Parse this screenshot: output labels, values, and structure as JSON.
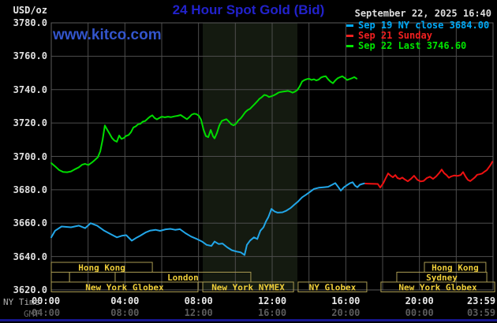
{
  "header": {
    "title": "24 Hour Spot Gold (Bid)",
    "unit_label": "USD/oz",
    "datetime": "September 22, 2025 16:40",
    "watermark": "www.kitco.com"
  },
  "legend": {
    "items": [
      {
        "label": "Sep 19 NY close 3684.00",
        "color": "#00aaf8"
      },
      {
        "label": "Sep 21 Sunday",
        "color": "#f02020"
      },
      {
        "label": "Sep 22 Last 3746.60",
        "color": "#00e400"
      }
    ]
  },
  "axes": {
    "x_ny_label": "NY Time",
    "x_gmt_label": "GMT",
    "x_ticks": [
      {
        "h": 0,
        "ny": "00:00",
        "gmt": "04:00"
      },
      {
        "h": 4,
        "ny": "04:00",
        "gmt": "08:00"
      },
      {
        "h": 8,
        "ny": "08:00",
        "gmt": "12:00"
      },
      {
        "h": 12,
        "ny": "12:00",
        "gmt": "16:00"
      },
      {
        "h": 16,
        "ny": "16:00",
        "gmt": "20:00"
      },
      {
        "h": 20,
        "ny": "20:00",
        "gmt": "00:00"
      },
      {
        "h": 23.983,
        "ny": "23:59",
        "gmt": "03:59"
      }
    ],
    "y_ticks": [
      {
        "v": 3780,
        "label": "3780.0"
      },
      {
        "v": 3760,
        "label": "3760.0"
      },
      {
        "v": 3740,
        "label": "3740.0"
      },
      {
        "v": 3720,
        "label": "3720.0"
      },
      {
        "v": 3700,
        "label": "3700.0"
      },
      {
        "v": 3680,
        "label": "3680.0"
      },
      {
        "v": 3660,
        "label": "3660.0"
      },
      {
        "v": 3640,
        "label": "3640.0"
      },
      {
        "v": 3620,
        "label": "3620.0"
      }
    ]
  },
  "sessions": [
    {
      "row": 1,
      "start_h": 0,
      "end_h": 5.49,
      "label": "Hong Kong"
    },
    {
      "row": 1,
      "start_h": 20.27,
      "end_h": 23.61,
      "label": "Hong Kong"
    },
    {
      "row": 2,
      "start_h": 0,
      "end_h": 0.99,
      "label": ""
    },
    {
      "row": 2,
      "start_h": 0.99,
      "end_h": 3.47,
      "label": ""
    },
    {
      "row": 2,
      "start_h": 3.47,
      "end_h": 10.84,
      "label": "London"
    },
    {
      "row": 2,
      "start_h": 18.77,
      "end_h": 23.66,
      "label": "Sydney"
    },
    {
      "row": 3,
      "start_h": 0,
      "end_h": 7.97,
      "label": "New York Globex"
    },
    {
      "row": 3,
      "start_h": 8.23,
      "end_h": 13.16,
      "label": "New York NYMEX"
    },
    {
      "row": 3,
      "start_h": 13.41,
      "end_h": 17.14,
      "label": "NY Globex"
    },
    {
      "row": 3,
      "start_h": 17.91,
      "end_h": 24.09,
      "label": "New York Globex"
    }
  ],
  "chart_data": {
    "type": "line",
    "title": "24 Hour Spot Gold (Bid)",
    "xlabel": "NY Time (hours)",
    "ylabel": "USD/oz",
    "ylim": [
      3620,
      3780
    ],
    "xlim_hours": [
      0,
      24
    ],
    "grid": true,
    "nymex_band_h": [
      8.23,
      13.37
    ],
    "band_color": "#141a10",
    "grid_color": "#4d4d4d",
    "series": [
      {
        "name": "Sep 22 Last 3746.60",
        "color": "#00dc00",
        "points": [
          [
            0,
            3696
          ],
          [
            0.21,
            3694
          ],
          [
            0.43,
            3691.8
          ],
          [
            0.64,
            3690.7
          ],
          [
            0.86,
            3690.5
          ],
          [
            1.07,
            3691
          ],
          [
            1.29,
            3692.3
          ],
          [
            1.5,
            3693.5
          ],
          [
            1.67,
            3695
          ],
          [
            1.84,
            3695.5
          ],
          [
            2.01,
            3694.8
          ],
          [
            2.19,
            3696.2
          ],
          [
            2.36,
            3697.8
          ],
          [
            2.53,
            3699.5
          ],
          [
            2.66,
            3703
          ],
          [
            2.79,
            3710
          ],
          [
            2.91,
            3718.5
          ],
          [
            3.04,
            3716
          ],
          [
            3.17,
            3713.5
          ],
          [
            3.3,
            3711
          ],
          [
            3.43,
            3709.5
          ],
          [
            3.56,
            3708.8
          ],
          [
            3.69,
            3712.5
          ],
          [
            3.81,
            3710.5
          ],
          [
            3.94,
            3711
          ],
          [
            4.07,
            3712.3
          ],
          [
            4.2,
            3712.8
          ],
          [
            4.33,
            3714.5
          ],
          [
            4.46,
            3717.3
          ],
          [
            4.59,
            3718
          ],
          [
            4.71,
            3719.2
          ],
          [
            4.84,
            3719.5
          ],
          [
            4.97,
            3720.8
          ],
          [
            5.1,
            3721.2
          ],
          [
            5.23,
            3722.5
          ],
          [
            5.36,
            3723.8
          ],
          [
            5.49,
            3724.6
          ],
          [
            5.61,
            3723
          ],
          [
            5.74,
            3722.2
          ],
          [
            5.87,
            3723
          ],
          [
            6,
            3723.8
          ],
          [
            6.17,
            3723.4
          ],
          [
            6.34,
            3723.8
          ],
          [
            6.51,
            3723.5
          ],
          [
            6.69,
            3724
          ],
          [
            6.86,
            3724.3
          ],
          [
            7.03,
            3724.8
          ],
          [
            7.2,
            3723.5
          ],
          [
            7.37,
            3722.3
          ],
          [
            7.5,
            3723.5
          ],
          [
            7.63,
            3725
          ],
          [
            7.76,
            3725.6
          ],
          [
            7.89,
            3725.3
          ],
          [
            8.01,
            3724.4
          ],
          [
            8.14,
            3722
          ],
          [
            8.27,
            3716
          ],
          [
            8.4,
            3712.2
          ],
          [
            8.53,
            3711.5
          ],
          [
            8.66,
            3715.8
          ],
          [
            8.79,
            3712
          ],
          [
            8.87,
            3710.8
          ],
          [
            9,
            3714
          ],
          [
            9.13,
            3718.5
          ],
          [
            9.26,
            3721.2
          ],
          [
            9.39,
            3721.8
          ],
          [
            9.51,
            3722.3
          ],
          [
            9.64,
            3721
          ],
          [
            9.77,
            3719.3
          ],
          [
            9.9,
            3718.6
          ],
          [
            10.03,
            3719.5
          ],
          [
            10.16,
            3721.5
          ],
          [
            10.29,
            3722.8
          ],
          [
            10.41,
            3724.5
          ],
          [
            10.54,
            3726.5
          ],
          [
            10.67,
            3727.8
          ],
          [
            10.8,
            3728.5
          ],
          [
            10.93,
            3730
          ],
          [
            11.06,
            3731.5
          ],
          [
            11.19,
            3733
          ],
          [
            11.31,
            3734.5
          ],
          [
            11.44,
            3735.5
          ],
          [
            11.57,
            3736.8
          ],
          [
            11.7,
            3736.5
          ],
          [
            11.83,
            3735.6
          ],
          [
            11.96,
            3736
          ],
          [
            12.09,
            3736.6
          ],
          [
            12.21,
            3737.3
          ],
          [
            12.34,
            3738.2
          ],
          [
            12.47,
            3738.6
          ],
          [
            12.6,
            3738.8
          ],
          [
            12.73,
            3739
          ],
          [
            12.86,
            3739.2
          ],
          [
            12.99,
            3738.8
          ],
          [
            13.11,
            3738.2
          ],
          [
            13.24,
            3738.8
          ],
          [
            13.37,
            3739.8
          ],
          [
            13.5,
            3742
          ],
          [
            13.63,
            3744.9
          ],
          [
            13.76,
            3745.8
          ],
          [
            13.89,
            3746.3
          ],
          [
            14.01,
            3746.5
          ],
          [
            14.14,
            3745.8
          ],
          [
            14.27,
            3746.2
          ],
          [
            14.4,
            3745.5
          ],
          [
            14.53,
            3746
          ],
          [
            14.66,
            3747.3
          ],
          [
            14.79,
            3747.8
          ],
          [
            14.91,
            3748
          ],
          [
            15.04,
            3746.2
          ],
          [
            15.17,
            3744.8
          ],
          [
            15.3,
            3743.8
          ],
          [
            15.43,
            3745.5
          ],
          [
            15.56,
            3746.8
          ],
          [
            15.69,
            3747.5
          ],
          [
            15.81,
            3748
          ],
          [
            15.94,
            3747
          ],
          [
            16.07,
            3745.8
          ],
          [
            16.2,
            3746.3
          ],
          [
            16.33,
            3746.8
          ],
          [
            16.46,
            3747.5
          ],
          [
            16.59,
            3746.6
          ]
        ]
      },
      {
        "name": "Sep 19 NY close 3684.00",
        "color": "#22a6e8",
        "points": [
          [
            0,
            3651.5
          ],
          [
            0.21,
            3655.5
          ],
          [
            0.56,
            3658
          ],
          [
            1.07,
            3657.5
          ],
          [
            1.5,
            3658.5
          ],
          [
            1.84,
            3657
          ],
          [
            2.14,
            3660
          ],
          [
            2.49,
            3658.5
          ],
          [
            2.87,
            3655.5
          ],
          [
            3.21,
            3653.5
          ],
          [
            3.56,
            3651.5
          ],
          [
            3.86,
            3652.5
          ],
          [
            4.07,
            3652.8
          ],
          [
            4.37,
            3649.5
          ],
          [
            4.59,
            3651
          ],
          [
            4.84,
            3652.5
          ],
          [
            5.14,
            3654.5
          ],
          [
            5.36,
            3655.5
          ],
          [
            5.66,
            3656
          ],
          [
            5.91,
            3655.4
          ],
          [
            6.21,
            3656.3
          ],
          [
            6.47,
            3656.6
          ],
          [
            6.73,
            3656
          ],
          [
            6.99,
            3656.4
          ],
          [
            7.29,
            3654
          ],
          [
            7.59,
            3652
          ],
          [
            7.93,
            3650.4
          ],
          [
            8.19,
            3649
          ],
          [
            8.44,
            3647
          ],
          [
            8.7,
            3646.4
          ],
          [
            8.87,
            3649
          ],
          [
            9.09,
            3647.5
          ],
          [
            9.3,
            3647.8
          ],
          [
            9.56,
            3645.5
          ],
          [
            9.81,
            3643.8
          ],
          [
            10.07,
            3643
          ],
          [
            10.29,
            3642.5
          ],
          [
            10.5,
            3640.9
          ],
          [
            10.63,
            3647
          ],
          [
            10.8,
            3649.6
          ],
          [
            11.01,
            3651.5
          ],
          [
            11.19,
            3650.5
          ],
          [
            11.36,
            3655.5
          ],
          [
            11.53,
            3657.5
          ],
          [
            11.66,
            3661
          ],
          [
            11.79,
            3663.5
          ],
          [
            11.96,
            3668.5
          ],
          [
            12.13,
            3667
          ],
          [
            12.3,
            3666.3
          ],
          [
            12.56,
            3666.5
          ],
          [
            12.77,
            3667.5
          ],
          [
            12.99,
            3669
          ],
          [
            13.2,
            3671
          ],
          [
            13.41,
            3673
          ],
          [
            13.63,
            3675.5
          ],
          [
            13.84,
            3677
          ],
          [
            14.06,
            3678.8
          ],
          [
            14.27,
            3680.5
          ],
          [
            14.53,
            3681.2
          ],
          [
            14.79,
            3681.5
          ],
          [
            15.04,
            3681.8
          ],
          [
            15.26,
            3683
          ],
          [
            15.43,
            3684
          ],
          [
            15.6,
            3681.5
          ],
          [
            15.73,
            3679.5
          ],
          [
            15.9,
            3681.5
          ],
          [
            16.07,
            3682.8
          ],
          [
            16.24,
            3684
          ],
          [
            16.37,
            3684.5
          ],
          [
            16.5,
            3682.5
          ],
          [
            16.63,
            3681.5
          ],
          [
            16.76,
            3683
          ],
          [
            16.89,
            3683.5
          ],
          [
            17.01,
            3683.8
          ]
        ]
      },
      {
        "name": "Sep 21 Sunday",
        "color": "#ee1111",
        "points": [
          [
            17.06,
            3683.7
          ],
          [
            17.36,
            3683.6
          ],
          [
            17.74,
            3683.5
          ],
          [
            17.87,
            3681.3
          ],
          [
            18.04,
            3684
          ],
          [
            18.17,
            3687
          ],
          [
            18.3,
            3689.8
          ],
          [
            18.43,
            3688.5
          ],
          [
            18.56,
            3687.5
          ],
          [
            18.69,
            3688.8
          ],
          [
            18.81,
            3687
          ],
          [
            18.94,
            3686.5
          ],
          [
            19.07,
            3687.3
          ],
          [
            19.2,
            3686.2
          ],
          [
            19.37,
            3685.1
          ],
          [
            19.54,
            3686.5
          ],
          [
            19.71,
            3688.4
          ],
          [
            19.89,
            3686
          ],
          [
            20.06,
            3685
          ],
          [
            20.23,
            3685.3
          ],
          [
            20.4,
            3687
          ],
          [
            20.57,
            3687.8
          ],
          [
            20.74,
            3686.5
          ],
          [
            20.91,
            3688
          ],
          [
            21.09,
            3690.3
          ],
          [
            21.21,
            3692.1
          ],
          [
            21.34,
            3690
          ],
          [
            21.47,
            3688.8
          ],
          [
            21.6,
            3687.2
          ],
          [
            21.73,
            3688
          ],
          [
            21.9,
            3688.6
          ],
          [
            22.07,
            3688.3
          ],
          [
            22.24,
            3688.8
          ],
          [
            22.37,
            3690.6
          ],
          [
            22.5,
            3688
          ],
          [
            22.63,
            3686
          ],
          [
            22.76,
            3685.2
          ],
          [
            22.89,
            3686.3
          ],
          [
            23.01,
            3687.4
          ],
          [
            23.14,
            3689
          ],
          [
            23.27,
            3689.3
          ],
          [
            23.4,
            3689.7
          ],
          [
            23.53,
            3690.8
          ],
          [
            23.66,
            3691.8
          ],
          [
            23.79,
            3693.7
          ],
          [
            23.87,
            3695
          ],
          [
            23.96,
            3696.8
          ]
        ]
      }
    ]
  }
}
